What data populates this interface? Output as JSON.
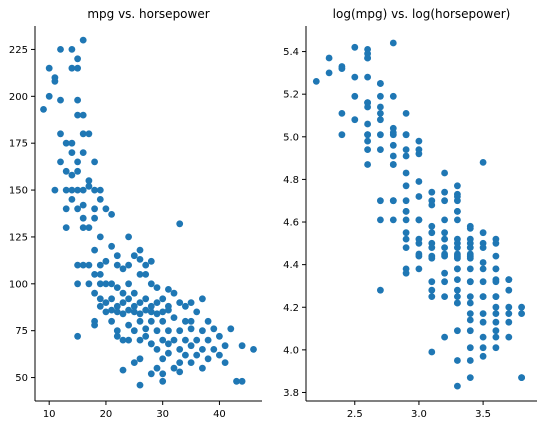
{
  "chart_data": [
    {
      "type": "scatter",
      "title": "mpg vs. horsepower",
      "xlabel": "",
      "ylabel": "",
      "xlim": [
        7.5,
        47.5
      ],
      "ylim": [
        37.5,
        237.5
      ],
      "xticks": [
        10,
        20,
        30,
        40
      ],
      "yticks": [
        50,
        75,
        100,
        125,
        150,
        175,
        200,
        225
      ],
      "grid": false,
      "color": "#1f77b4",
      "points": [
        [
          9,
          193
        ],
        [
          10,
          215
        ],
        [
          10,
          200
        ],
        [
          11,
          210
        ],
        [
          11,
          208
        ],
        [
          12,
          225
        ],
        [
          12,
          198
        ],
        [
          14,
          225
        ],
        [
          14,
          215
        ],
        [
          15,
          220
        ],
        [
          15,
          215
        ],
        [
          15,
          198
        ],
        [
          16,
          230
        ],
        [
          16,
          190
        ],
        [
          15,
          190
        ],
        [
          12,
          180
        ],
        [
          13,
          175
        ],
        [
          14,
          175
        ],
        [
          16,
          180
        ],
        [
          17,
          180
        ],
        [
          14,
          170
        ],
        [
          16,
          170
        ],
        [
          12,
          165
        ],
        [
          13,
          160
        ],
        [
          15,
          165
        ],
        [
          18,
          165
        ],
        [
          14,
          158
        ],
        [
          15,
          160
        ],
        [
          17,
          155
        ],
        [
          11,
          150
        ],
        [
          13,
          150
        ],
        [
          14,
          150
        ],
        [
          15,
          150
        ],
        [
          16,
          150
        ],
        [
          17,
          152
        ],
        [
          18,
          150
        ],
        [
          19,
          150
        ],
        [
          14,
          145
        ],
        [
          15,
          140
        ],
        [
          16,
          142
        ],
        [
          18,
          140
        ],
        [
          19,
          145
        ],
        [
          13,
          140
        ],
        [
          16,
          135
        ],
        [
          18,
          135
        ],
        [
          20,
          140
        ],
        [
          21,
          137
        ],
        [
          13,
          130
        ],
        [
          16,
          130
        ],
        [
          17,
          130
        ],
        [
          19,
          125
        ],
        [
          21,
          120
        ],
        [
          18,
          118
        ],
        [
          24,
          125
        ],
        [
          25,
          115
        ],
        [
          22,
          115
        ],
        [
          26,
          118
        ],
        [
          33,
          132
        ],
        [
          15,
          110
        ],
        [
          16,
          110
        ],
        [
          17,
          110
        ],
        [
          18,
          105
        ],
        [
          19,
          110
        ],
        [
          20,
          112
        ],
        [
          22,
          110
        ],
        [
          23,
          108
        ],
        [
          24,
          110
        ],
        [
          26,
          113
        ],
        [
          27,
          110
        ],
        [
          28,
          112
        ],
        [
          15,
          100
        ],
        [
          17,
          100
        ],
        [
          19,
          100
        ],
        [
          20,
          100
        ],
        [
          21,
          100
        ],
        [
          22,
          98
        ],
        [
          24,
          100
        ],
        [
          25,
          95
        ],
        [
          26,
          105
        ],
        [
          27,
          105
        ],
        [
          28,
          100
        ],
        [
          29,
          98
        ],
        [
          31,
          97
        ],
        [
          18,
          95
        ],
        [
          19,
          92
        ],
        [
          20,
          90
        ],
        [
          21,
          92
        ],
        [
          22,
          88
        ],
        [
          23,
          90
        ],
        [
          24,
          92
        ],
        [
          25,
          88
        ],
        [
          26,
          90
        ],
        [
          27,
          92
        ],
        [
          28,
          88
        ],
        [
          29,
          90
        ],
        [
          30,
          92
        ],
        [
          31,
          88
        ],
        [
          32,
          95
        ],
        [
          33,
          90
        ],
        [
          19,
          88
        ],
        [
          20,
          85
        ],
        [
          21,
          86
        ],
        [
          22,
          85
        ],
        [
          23,
          84
        ],
        [
          24,
          86
        ],
        [
          25,
          85
        ],
        [
          26,
          84
        ],
        [
          27,
          86
        ],
        [
          28,
          85
        ],
        [
          29,
          84
        ],
        [
          30,
          85
        ],
        [
          31,
          86
        ],
        [
          34,
          88
        ],
        [
          35,
          90
        ],
        [
          36,
          85
        ],
        [
          37,
          92
        ],
        [
          18,
          80
        ],
        [
          21,
          80
        ],
        [
          24,
          78
        ],
        [
          26,
          80
        ],
        [
          28,
          80
        ],
        [
          30,
          80
        ],
        [
          32,
          82
        ],
        [
          35,
          80
        ],
        [
          38,
          80
        ],
        [
          18,
          78
        ],
        [
          22,
          75
        ],
        [
          25,
          75
        ],
        [
          27,
          76
        ],
        [
          29,
          75
        ],
        [
          31,
          75
        ],
        [
          33,
          75
        ],
        [
          35,
          76
        ],
        [
          37,
          75
        ],
        [
          39,
          76
        ],
        [
          42,
          76
        ],
        [
          22,
          72
        ],
        [
          24,
          70
        ],
        [
          27,
          72
        ],
        [
          30,
          70
        ],
        [
          32,
          70
        ],
        [
          34,
          70
        ],
        [
          36,
          70
        ],
        [
          38,
          70
        ],
        [
          40,
          72
        ],
        [
          15,
          72
        ],
        [
          23,
          70
        ],
        [
          28,
          68
        ],
        [
          31,
          68
        ],
        [
          33,
          65
        ],
        [
          35,
          67
        ],
        [
          37,
          65
        ],
        [
          39,
          65
        ],
        [
          41,
          67
        ],
        [
          44,
          67
        ],
        [
          46,
          65
        ],
        [
          29,
          65
        ],
        [
          31,
          63
        ],
        [
          34,
          62
        ],
        [
          36,
          62
        ],
        [
          38,
          60
        ],
        [
          40,
          62
        ],
        [
          26,
          60
        ],
        [
          30,
          60
        ],
        [
          33,
          58
        ],
        [
          35,
          58
        ],
        [
          37,
          55
        ],
        [
          41,
          58
        ],
        [
          25,
          58
        ],
        [
          29,
          55
        ],
        [
          32,
          55
        ],
        [
          23,
          54
        ],
        [
          30,
          52
        ],
        [
          33,
          53
        ],
        [
          28,
          52
        ],
        [
          26,
          46
        ],
        [
          30,
          48
        ],
        [
          43,
          48
        ],
        [
          44,
          48
        ],
        [
          28,
          68
        ],
        [
          34,
          80
        ],
        [
          19,
          105
        ],
        [
          23,
          95
        ],
        [
          26,
          70
        ]
      ]
    },
    {
      "type": "scatter",
      "title": "log(mpg) vs. log(horsepower)",
      "xlabel": "",
      "ylabel": "",
      "xlim": [
        2.12,
        3.92
      ],
      "ylim": [
        3.76,
        5.52
      ],
      "xticks": [
        2.5,
        3.0,
        3.5
      ],
      "yticks": [
        3.8,
        4.0,
        4.2,
        4.4,
        4.6,
        4.8,
        5.0,
        5.2,
        5.4
      ],
      "grid": false,
      "color": "#1f77b4",
      "points": [
        [
          2.2,
          5.26
        ],
        [
          2.3,
          5.37
        ],
        [
          2.3,
          5.3
        ],
        [
          2.4,
          5.33
        ],
        [
          2.4,
          5.32
        ],
        [
          2.5,
          5.42
        ],
        [
          2.5,
          5.28
        ],
        [
          2.6,
          5.41
        ],
        [
          2.6,
          5.37
        ],
        [
          2.6,
          5.39
        ],
        [
          2.6,
          5.37
        ],
        [
          2.6,
          5.28
        ],
        [
          2.8,
          5.44
        ],
        [
          2.7,
          5.25
        ],
        [
          2.7,
          5.25
        ],
        [
          2.5,
          5.19
        ],
        [
          2.6,
          5.16
        ],
        [
          2.6,
          5.16
        ],
        [
          2.7,
          5.19
        ],
        [
          2.8,
          5.19
        ],
        [
          2.6,
          5.14
        ],
        [
          2.7,
          5.14
        ],
        [
          2.4,
          5.11
        ],
        [
          2.5,
          5.08
        ],
        [
          2.7,
          5.11
        ],
        [
          2.9,
          5.11
        ],
        [
          2.6,
          5.06
        ],
        [
          2.7,
          5.08
        ],
        [
          2.8,
          5.04
        ],
        [
          2.4,
          5.01
        ],
        [
          2.6,
          5.01
        ],
        [
          2.6,
          5.01
        ],
        [
          2.7,
          5.01
        ],
        [
          2.8,
          5.01
        ],
        [
          2.8,
          5.02
        ],
        [
          2.9,
          5.01
        ],
        [
          2.9,
          5.01
        ],
        [
          2.6,
          4.98
        ],
        [
          2.7,
          4.94
        ],
        [
          2.8,
          4.96
        ],
        [
          2.9,
          4.94
        ],
        [
          3.0,
          4.98
        ],
        [
          2.6,
          4.94
        ],
        [
          2.8,
          4.91
        ],
        [
          2.9,
          4.91
        ],
        [
          3.0,
          4.94
        ],
        [
          3.0,
          4.92
        ],
        [
          2.6,
          4.87
        ],
        [
          2.8,
          4.87
        ],
        [
          2.8,
          4.87
        ],
        [
          2.9,
          4.83
        ],
        [
          3.0,
          4.79
        ],
        [
          2.9,
          4.77
        ],
        [
          3.2,
          4.83
        ],
        [
          3.2,
          4.74
        ],
        [
          3.1,
          4.74
        ],
        [
          3.3,
          4.77
        ],
        [
          3.5,
          4.88
        ],
        [
          2.7,
          4.7
        ],
        [
          2.8,
          4.7
        ],
        [
          2.8,
          4.7
        ],
        [
          2.9,
          4.65
        ],
        [
          2.9,
          4.7
        ],
        [
          3.0,
          4.72
        ],
        [
          3.1,
          4.7
        ],
        [
          3.1,
          4.68
        ],
        [
          3.2,
          4.7
        ],
        [
          3.3,
          4.73
        ],
        [
          3.3,
          4.7
        ],
        [
          3.3,
          4.72
        ],
        [
          2.7,
          4.61
        ],
        [
          2.8,
          4.61
        ],
        [
          2.9,
          4.61
        ],
        [
          3.0,
          4.61
        ],
        [
          3.0,
          4.61
        ],
        [
          3.1,
          4.58
        ],
        [
          3.2,
          4.61
        ],
        [
          3.2,
          4.55
        ],
        [
          3.3,
          4.65
        ],
        [
          3.3,
          4.65
        ],
        [
          3.3,
          4.61
        ],
        [
          3.4,
          4.58
        ],
        [
          3.4,
          4.57
        ],
        [
          2.9,
          4.55
        ],
        [
          2.9,
          4.52
        ],
        [
          3.0,
          4.5
        ],
        [
          3.0,
          4.52
        ],
        [
          3.1,
          4.48
        ],
        [
          3.1,
          4.5
        ],
        [
          3.2,
          4.52
        ],
        [
          3.2,
          4.48
        ],
        [
          3.3,
          4.5
        ],
        [
          3.3,
          4.52
        ],
        [
          3.3,
          4.48
        ],
        [
          3.4,
          4.5
        ],
        [
          3.4,
          4.52
        ],
        [
          3.4,
          4.48
        ],
        [
          3.5,
          4.55
        ],
        [
          3.5,
          4.5
        ],
        [
          2.9,
          4.48
        ],
        [
          3.0,
          4.44
        ],
        [
          3.0,
          4.45
        ],
        [
          3.1,
          4.44
        ],
        [
          3.1,
          4.43
        ],
        [
          3.2,
          4.45
        ],
        [
          3.2,
          4.44
        ],
        [
          3.3,
          4.43
        ],
        [
          3.3,
          4.45
        ],
        [
          3.3,
          4.44
        ],
        [
          3.4,
          4.43
        ],
        [
          3.4,
          4.44
        ],
        [
          3.4,
          4.45
        ],
        [
          3.5,
          4.48
        ],
        [
          3.6,
          4.5
        ],
        [
          3.6,
          4.44
        ],
        [
          3.6,
          4.52
        ],
        [
          2.9,
          4.38
        ],
        [
          3.0,
          4.38
        ],
        [
          3.2,
          4.36
        ],
        [
          3.3,
          4.38
        ],
        [
          3.3,
          4.38
        ],
        [
          3.4,
          4.38
        ],
        [
          3.5,
          4.41
        ],
        [
          3.6,
          4.38
        ],
        [
          3.6,
          4.38
        ],
        [
          2.9,
          4.36
        ],
        [
          3.1,
          4.32
        ],
        [
          3.2,
          4.32
        ],
        [
          3.3,
          4.33
        ],
        [
          3.4,
          4.32
        ],
        [
          3.4,
          4.32
        ],
        [
          3.5,
          4.32
        ],
        [
          3.6,
          4.33
        ],
        [
          3.6,
          4.32
        ],
        [
          3.7,
          4.33
        ],
        [
          3.7,
          4.33
        ],
        [
          3.1,
          4.28
        ],
        [
          3.2,
          4.25
        ],
        [
          3.3,
          4.28
        ],
        [
          3.4,
          4.25
        ],
        [
          3.5,
          4.25
        ],
        [
          3.5,
          4.25
        ],
        [
          3.6,
          4.25
        ],
        [
          3.6,
          4.25
        ],
        [
          3.7,
          4.28
        ],
        [
          2.7,
          4.28
        ],
        [
          3.1,
          4.25
        ],
        [
          3.3,
          4.22
        ],
        [
          3.4,
          4.22
        ],
        [
          3.5,
          4.17
        ],
        [
          3.6,
          4.2
        ],
        [
          3.6,
          4.17
        ],
        [
          3.7,
          4.17
        ],
        [
          3.7,
          4.2
        ],
        [
          3.8,
          4.2
        ],
        [
          3.8,
          4.17
        ],
        [
          3.4,
          4.17
        ],
        [
          3.4,
          4.14
        ],
        [
          3.5,
          4.13
        ],
        [
          3.6,
          4.13
        ],
        [
          3.6,
          4.09
        ],
        [
          3.7,
          4.13
        ],
        [
          3.3,
          4.09
        ],
        [
          3.4,
          4.09
        ],
        [
          3.5,
          4.06
        ],
        [
          3.6,
          4.06
        ],
        [
          3.6,
          4.01
        ],
        [
          3.7,
          4.06
        ],
        [
          3.2,
          4.06
        ],
        [
          3.4,
          4.01
        ],
        [
          3.5,
          4.01
        ],
        [
          3.1,
          3.99
        ],
        [
          3.4,
          3.95
        ],
        [
          3.5,
          3.97
        ],
        [
          3.3,
          3.95
        ],
        [
          3.3,
          3.83
        ],
        [
          3.4,
          3.87
        ],
        [
          3.8,
          3.87
        ],
        [
          3.8,
          3.87
        ],
        [
          3.3,
          4.22
        ],
        [
          3.5,
          4.38
        ],
        [
          2.9,
          4.65
        ],
        [
          3.1,
          4.55
        ],
        [
          3.3,
          4.25
        ]
      ]
    }
  ]
}
